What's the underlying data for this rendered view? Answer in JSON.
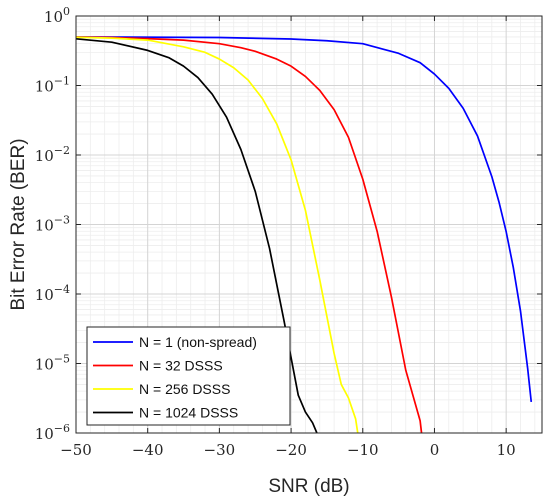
{
  "chart_data": {
    "type": "line",
    "title": "",
    "xlabel": "SNR (dB)",
    "ylabel": "Bit Error Rate (BER)",
    "xlim": [
      -50,
      15
    ],
    "ylim": [
      1e-06,
      1
    ],
    "yscale": "log",
    "grid": true,
    "minor_grid": true,
    "legend_position": "bottom-left",
    "x_ticks": [
      -50,
      -40,
      -30,
      -20,
      -10,
      0,
      10
    ],
    "x_tick_labels": [
      "−50",
      "−40",
      "−30",
      "−20",
      "−10",
      "0",
      "10"
    ],
    "y_tick_exponents": [
      0,
      -1,
      -2,
      -3,
      -4,
      -5,
      -6
    ],
    "y_tick_base": "10",
    "series": [
      {
        "name": "N = 1 (non-spread)",
        "color": "#0000ff",
        "x": [
          -50,
          -30,
          -20,
          -15,
          -10,
          -5,
          -2,
          0,
          2,
          4,
          6,
          8,
          9,
          10,
          11,
          12,
          13,
          13.5
        ],
        "y": [
          0.5,
          0.49,
          0.467,
          0.44,
          0.4,
          0.29,
          0.213,
          0.146,
          0.091,
          0.047,
          0.0188,
          0.00488,
          0.00211,
          0.00079,
          0.00024,
          5.7e-05,
          8.5e-06,
          2.8e-06
        ]
      },
      {
        "name": "N = 32 DSSS",
        "color": "#ff0000",
        "x": [
          -50,
          -45,
          -40,
          -35,
          -30,
          -27,
          -25,
          -22,
          -20,
          -18,
          -16,
          -14,
          -12,
          -10,
          -8,
          -6,
          -4,
          -2,
          -1.8
        ],
        "y": [
          0.5,
          0.49,
          0.472,
          0.45,
          0.4,
          0.35,
          0.31,
          0.24,
          0.19,
          0.135,
          0.085,
          0.045,
          0.018,
          0.0045,
          0.0008,
          9e-05,
          8e-06,
          1.5e-06,
          1e-06
        ]
      },
      {
        "name": "N = 256 DSSS",
        "color": "#ffff00",
        "x": [
          -50,
          -45,
          -40,
          -35,
          -32,
          -30,
          -28,
          -26,
          -24,
          -22,
          -20,
          -18,
          -16,
          -14,
          -13,
          -12,
          -11,
          -10.7
        ],
        "y": [
          0.495,
          0.48,
          0.45,
          0.36,
          0.3,
          0.24,
          0.18,
          0.12,
          0.065,
          0.028,
          0.0085,
          0.0016,
          0.00016,
          1.4e-05,
          5e-06,
          3.2e-06,
          1.6e-06,
          1e-06
        ]
      },
      {
        "name": "N = 1024 DSSS",
        "color": "#000000",
        "x": [
          -50,
          -45,
          -40,
          -37,
          -35,
          -33,
          -31,
          -29,
          -27,
          -25,
          -23,
          -21,
          -19,
          -18,
          -17,
          -16.4
        ],
        "y": [
          0.47,
          0.42,
          0.32,
          0.25,
          0.19,
          0.13,
          0.075,
          0.035,
          0.012,
          0.003,
          0.00045,
          4.2e-05,
          3.5e-06,
          2e-06,
          1.4e-06,
          1e-06
        ]
      }
    ]
  }
}
